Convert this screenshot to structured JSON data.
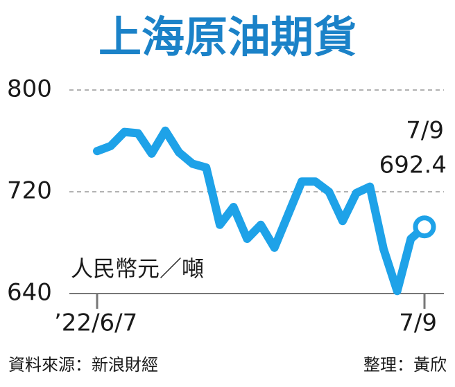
{
  "chart_data": {
    "type": "line",
    "title": "上海原油期貨",
    "y_label": "人民幣元／噸",
    "source": "資料來源：新浪財經",
    "editor": "整理：黃欣",
    "categories": [
      "’22/6/7",
      null,
      null,
      null,
      null,
      null,
      null,
      null,
      null,
      null,
      null,
      null,
      null,
      null,
      null,
      null,
      null,
      null,
      null,
      null,
      null,
      null,
      null,
      null,
      "7/9"
    ],
    "values": [
      752,
      756,
      767,
      766,
      750,
      768,
      751,
      742,
      739,
      694,
      708,
      683,
      694,
      676,
      702,
      728,
      728,
      720,
      697,
      719,
      724,
      675,
      642,
      683,
      692.4
    ],
    "color": "#1ea2e8",
    "ylim": [
      640,
      800
    ],
    "yticks": [
      640,
      720,
      800
    ],
    "grid": true
  }
}
